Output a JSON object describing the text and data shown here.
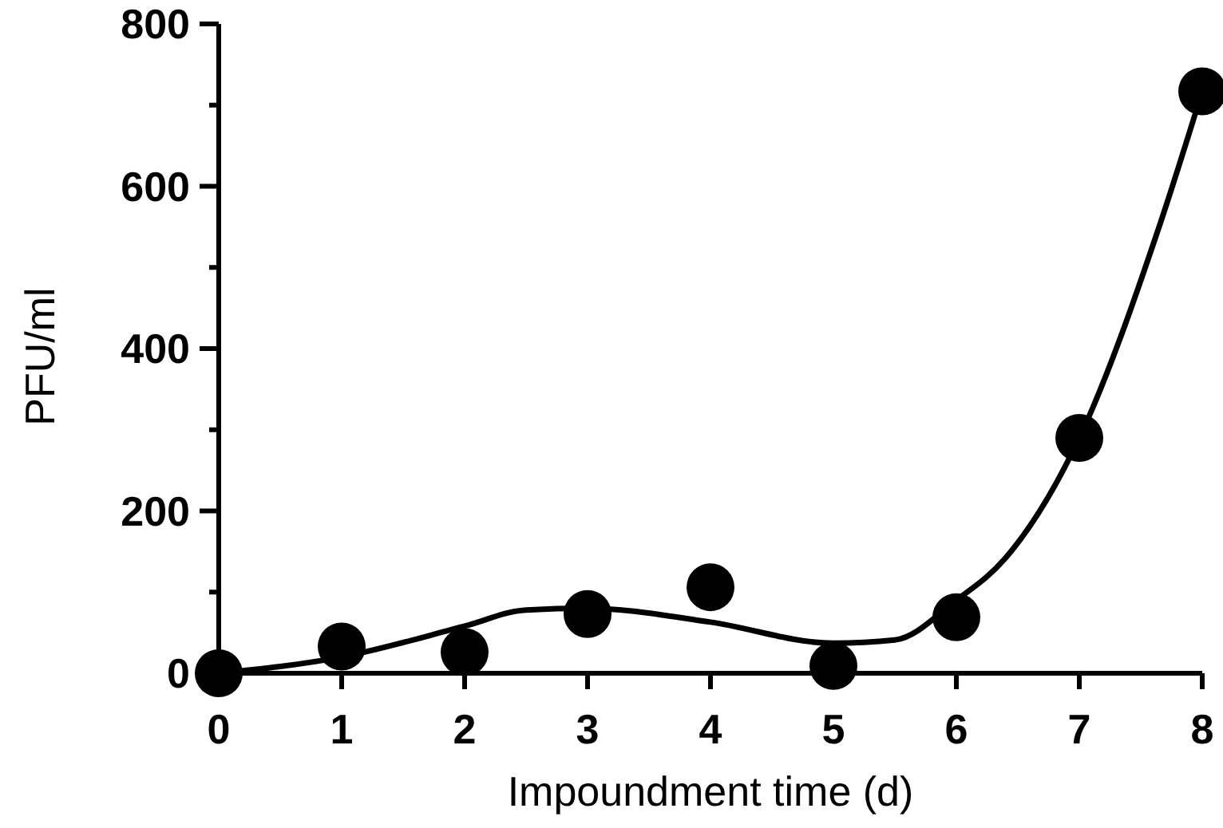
{
  "chart_data": {
    "type": "scatter",
    "xlabel": "Impoundment time (d)",
    "ylabel": "PFU/ml",
    "xlim": [
      0,
      8
    ],
    "xticks": [
      0,
      1,
      2,
      3,
      4,
      5,
      6,
      7,
      8
    ],
    "ylim": [
      0,
      800
    ],
    "yticks": [
      0,
      {
        "value": 100,
        "label": null
      },
      200,
      {
        "value": 300,
        "label": null
      },
      400,
      {
        "value": 500,
        "label": null
      },
      600,
      {
        "value": 700,
        "label": null
      },
      800
    ],
    "grid": false,
    "series": [
      {
        "color": "#000000",
        "marker": "circle",
        "x": [
          0,
          1,
          2,
          3,
          4,
          5,
          6,
          7,
          8
        ],
        "values": [
          0,
          33,
          26,
          73,
          106,
          9,
          69,
          290,
          717
        ]
      },
      {
        "type": "line",
        "color": "#000000",
        "marker": "none",
        "line_style": "solid",
        "x": [
          0,
          1,
          2,
          2.5,
          3,
          4,
          5,
          5.5,
          6,
          6.4,
          7,
          7.66,
          8
        ],
        "values": [
          0,
          20,
          58,
          78,
          80,
          63,
          37,
          41,
          90,
          142,
          290,
          555,
          717
        ]
      }
    ]
  }
}
